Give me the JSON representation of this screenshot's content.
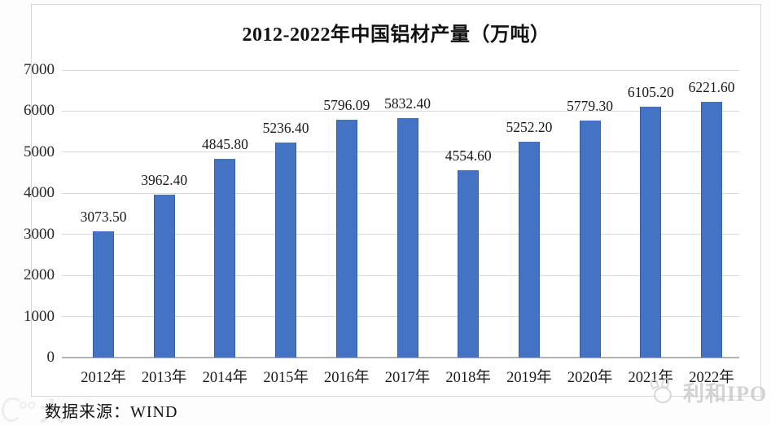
{
  "title": "2012-2022年中国铝材产量（万吨）",
  "source_note": "数据来源：WIND",
  "watermarks": {
    "bottom_right_text": "利和IPO",
    "bottom_left_char": "大"
  },
  "colors": {
    "bar": "#4472c4",
    "gridline": "#d9d9d9",
    "axis_baseline": "#b3b3b3",
    "frame_border": "#d9d9d9",
    "watermark_gray": "#c4c4c4"
  },
  "chart_data": {
    "type": "bar",
    "title": "2012-2022年中国铝材产量（万吨）",
    "categories": [
      "2012年",
      "2013年",
      "2014年",
      "2015年",
      "2016年",
      "2017年",
      "2018年",
      "2019年",
      "2020年",
      "2021年",
      "2022年"
    ],
    "values": [
      3073.5,
      3962.4,
      4845.8,
      5236.4,
      5796.09,
      5832.4,
      4554.6,
      5252.2,
      5779.3,
      6105.2,
      6221.6
    ],
    "value_labels": [
      "3073.50",
      "3962.40",
      "4845.80",
      "5236.40",
      "5796.09",
      "5832.40",
      "4554.60",
      "5252.20",
      "5779.30",
      "6105.20",
      "6221.60"
    ],
    "xlabel": "",
    "ylabel": "",
    "ylim": [
      0,
      7000
    ],
    "yticks": [
      0,
      1000,
      2000,
      3000,
      4000,
      5000,
      6000,
      7000
    ],
    "grid": true,
    "legend_position": "none",
    "bar_color": "#4472c4",
    "data_source": "WIND"
  }
}
